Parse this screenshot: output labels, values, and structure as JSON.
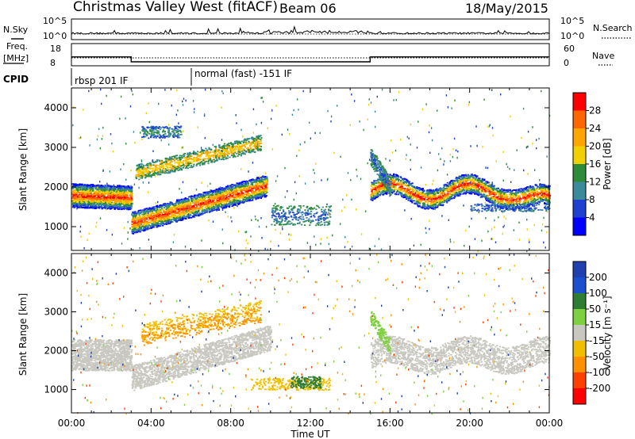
{
  "header": {
    "station": "Christmas Valley West (fitACF)",
    "beam": "Beam 06",
    "date": "18/May/2015"
  },
  "nsky": {
    "label": "N.Sky",
    "axis_ticks": [
      "10^5",
      "10^0"
    ],
    "right_label": "N.Search",
    "right_ticks": [
      "10^5",
      "10^0"
    ]
  },
  "freq": {
    "label_line1": "Freq.",
    "label_line2": "[MHz]",
    "ticks": [
      "18",
      "8"
    ],
    "right_label": "Nave",
    "right_ticks": [
      "60",
      "0"
    ]
  },
  "cpid": {
    "label": "CPID",
    "segments": [
      {
        "start_hour": 0,
        "end_hour": 6,
        "text": "rbsp 201 IF"
      },
      {
        "start_hour": 6,
        "end_hour": 24,
        "text": "normal (fast) -151 IF"
      }
    ]
  },
  "chart_data": [
    {
      "type": "line",
      "title": "N.Sky",
      "x_range_hours": [
        0,
        24
      ],
      "y_scale": "log",
      "ylim": [
        1,
        100000
      ]
    },
    {
      "type": "line",
      "title": "Freq.",
      "ylabel": "[MHz]",
      "x_range_hours": [
        0,
        24
      ],
      "ylim": [
        8,
        18
      ],
      "series": [
        {
          "name": "Freq.",
          "x": [
            0,
            3,
            3,
            15,
            15,
            24
          ],
          "values": [
            12,
            12,
            9.8,
            9.8,
            12,
            12
          ]
        }
      ]
    },
    {
      "type": "heatmap",
      "ylabel": "Slant Range [km]",
      "xlabel": "",
      "y_ticks": [
        1000,
        2000,
        3000,
        4000
      ],
      "ylim": [
        400,
        4500
      ],
      "colorbar": {
        "label": "Power [dB]",
        "ticks": [
          28,
          24,
          20,
          16,
          12,
          8,
          4
        ],
        "colors": [
          "#ff0000",
          "#ff6600",
          "#ffa500",
          "#f0d000",
          "#2e8b3a",
          "#3a8a9a",
          "#2040d0",
          "#0000ff"
        ]
      }
    },
    {
      "type": "heatmap",
      "ylabel": "Slant Range [km]",
      "xlabel": "Time UT",
      "y_ticks": [
        1000,
        2000,
        3000,
        4000
      ],
      "ylim": [
        400,
        4500
      ],
      "x_ticks": [
        "00:00",
        "04:00",
        "08:00",
        "12:00",
        "16:00",
        "20:00",
        "00:00"
      ],
      "colorbar": {
        "label": "Velocity [m s⁻¹]",
        "ticks": [
          "200",
          "100",
          "50",
          "15",
          "-15",
          "-50",
          "-100",
          "-200"
        ],
        "colors": [
          "#2040b0",
          "#1a4fd0",
          "#2e7d32",
          "#7fd040",
          "#c8c8c0",
          "#f0c000",
          "#ff9000",
          "#ff4000",
          "#ff0000"
        ]
      }
    }
  ],
  "colors": {
    "gray_velocity": "#c8c8c0"
  }
}
